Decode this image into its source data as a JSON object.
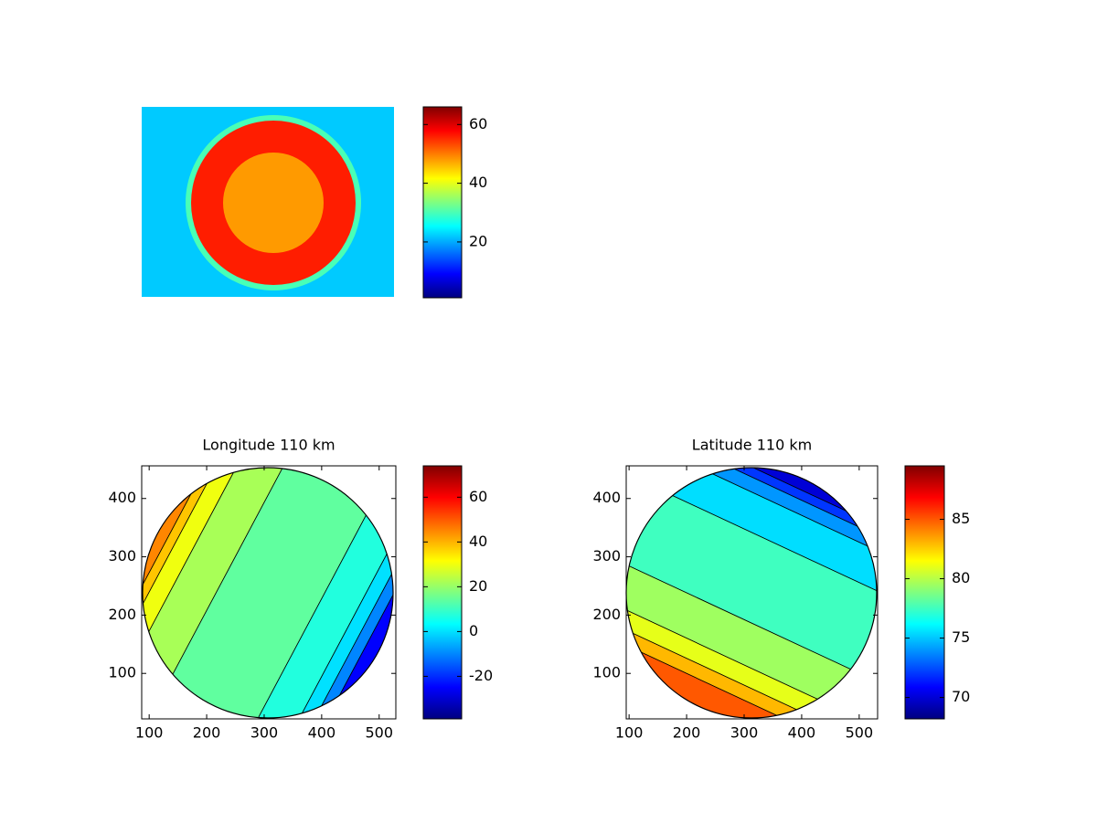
{
  "chart_data": [
    {
      "type": "image",
      "values": [
        22,
        30,
        56,
        46
      ],
      "colorbar": {
        "clim": [
          1,
          66
        ],
        "ticks": [
          20,
          40,
          60
        ]
      }
    },
    {
      "type": "contour",
      "title": "Longitude 110 km",
      "xlim": [
        87,
        529
      ],
      "ylim": [
        22,
        456
      ],
      "xticks": [
        100,
        200,
        300,
        400,
        500
      ],
      "yticks": [
        100,
        200,
        300,
        400
      ],
      "levels": [
        45,
        38,
        30,
        22,
        14,
        7,
        0,
        -10,
        -25
      ],
      "colorbar": {
        "clim": [
          -39,
          74
        ],
        "ticks": [
          -20,
          0,
          20,
          40,
          60
        ]
      }
    },
    {
      "type": "contour",
      "title": "Latitude 110 km",
      "xlim": [
        95,
        532
      ],
      "ylim": [
        22,
        456
      ],
      "xticks": [
        100,
        200,
        300,
        400,
        500
      ],
      "yticks": [
        100,
        200,
        300,
        400
      ],
      "levels": [
        70,
        72,
        74,
        75.5,
        77.5,
        79.5,
        81,
        83,
        85
      ],
      "colorbar": {
        "clim": [
          68.2,
          89.5
        ],
        "ticks": [
          70,
          75,
          80,
          85
        ]
      }
    }
  ]
}
